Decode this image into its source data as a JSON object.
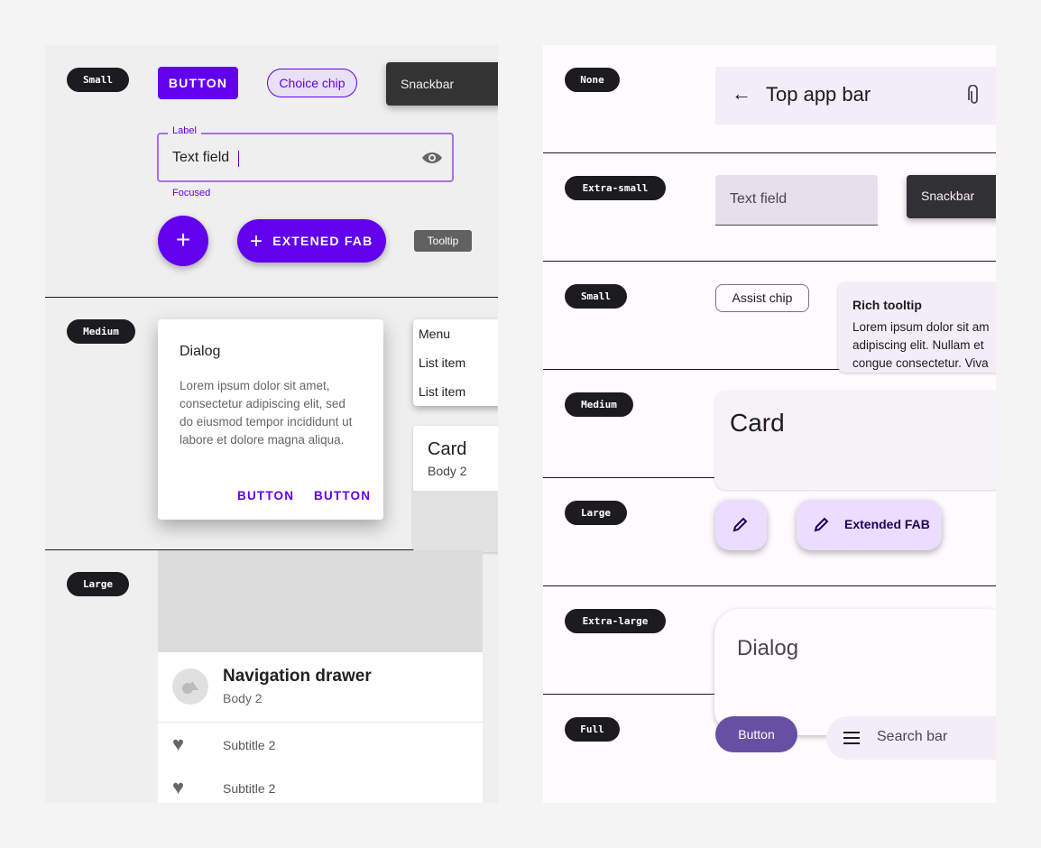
{
  "left": {
    "sections": [
      "Small",
      "Medium",
      "Large"
    ],
    "button": "BUTTON",
    "choice_chip": "Choice chip",
    "snackbar": "Snackbar",
    "text_field": {
      "label": "Label",
      "value": "Text field",
      "helper": "Focused",
      "trailing_icon": "eye-icon"
    },
    "fab_icon": "plus-icon",
    "extended_fab": "EXTENED FAB",
    "tooltip": "Tooltip",
    "dialog": {
      "title": "Dialog",
      "body": [
        "Lorem ipsum dolor sit amet,",
        "consectetur adipiscing elit, sed",
        "do eiusmod tempor incididunt ut",
        "labore et dolore magna aliqua."
      ],
      "buttons": [
        "BUTTON",
        "BUTTON"
      ]
    },
    "menu": [
      "Menu",
      "List item",
      "List item"
    ],
    "card": {
      "title": "Card",
      "body": "Body 2"
    },
    "nav_drawer": {
      "title": "Navigation drawer",
      "body": "Body 2",
      "items": [
        "Subtitle 2",
        "Subtitle 2"
      ]
    },
    "colors": {
      "primary": "#6200ee",
      "surface": "#efefef"
    }
  },
  "right": {
    "sections": [
      "None",
      "Extra-small",
      "Small",
      "Medium",
      "Large",
      "Extra-large",
      "Full"
    ],
    "top_app_bar": "Top app bar",
    "text_field": "Text field",
    "snackbar": "Snackbar",
    "assist_chip": "Assist chip",
    "rich_tooltip": {
      "title": "Rich tooltip",
      "lines": [
        "Lorem ipsum dolor sit am",
        "adipiscing elit. Nullam et",
        "congue consectetur. Viva"
      ]
    },
    "card": "Card",
    "extended_fab": "Extended FAB",
    "dialog": "Dialog",
    "button": "Button",
    "search_bar": "Search bar",
    "colors": {
      "primary": "#6750a4",
      "container": "#eaddff"
    }
  }
}
